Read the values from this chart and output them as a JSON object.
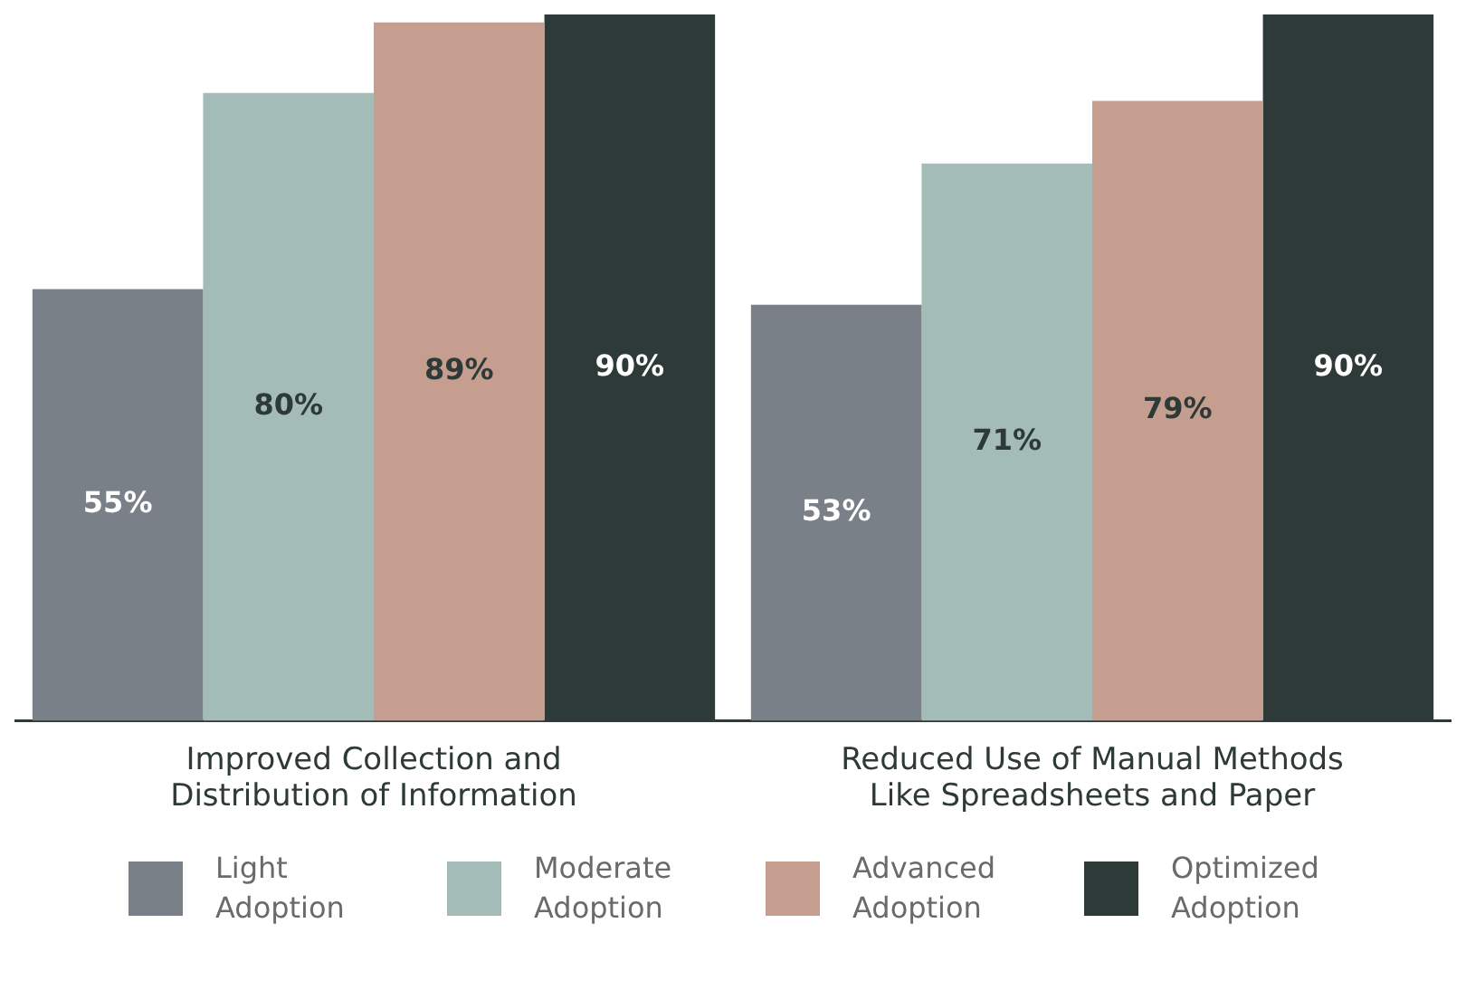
{
  "chart_data": {
    "type": "bar",
    "categories": [
      "Improved Collection and Distribution of Information",
      "Reduced Use of Manual Methods Like Spreadsheets and Paper"
    ],
    "series": [
      {
        "name": "Light Adoption",
        "color": "#7a8088",
        "values": [
          55,
          53
        ],
        "value_labels": [
          "55%",
          "53%"
        ]
      },
      {
        "name": "Moderate Adoption",
        "color": "#a3bcb8",
        "values": [
          80,
          71
        ],
        "value_labels": [
          "80%",
          "71%"
        ]
      },
      {
        "name": "Advanced Adoption",
        "color": "#c59e8f",
        "values": [
          89,
          79
        ],
        "value_labels": [
          "89%",
          "79%"
        ]
      },
      {
        "name": "Optimized Adoption",
        "color": "#2e3a38",
        "values": [
          90,
          90
        ],
        "value_labels": [
          "90%",
          "90%"
        ]
      }
    ],
    "legend": "bottom",
    "grid": false
  }
}
